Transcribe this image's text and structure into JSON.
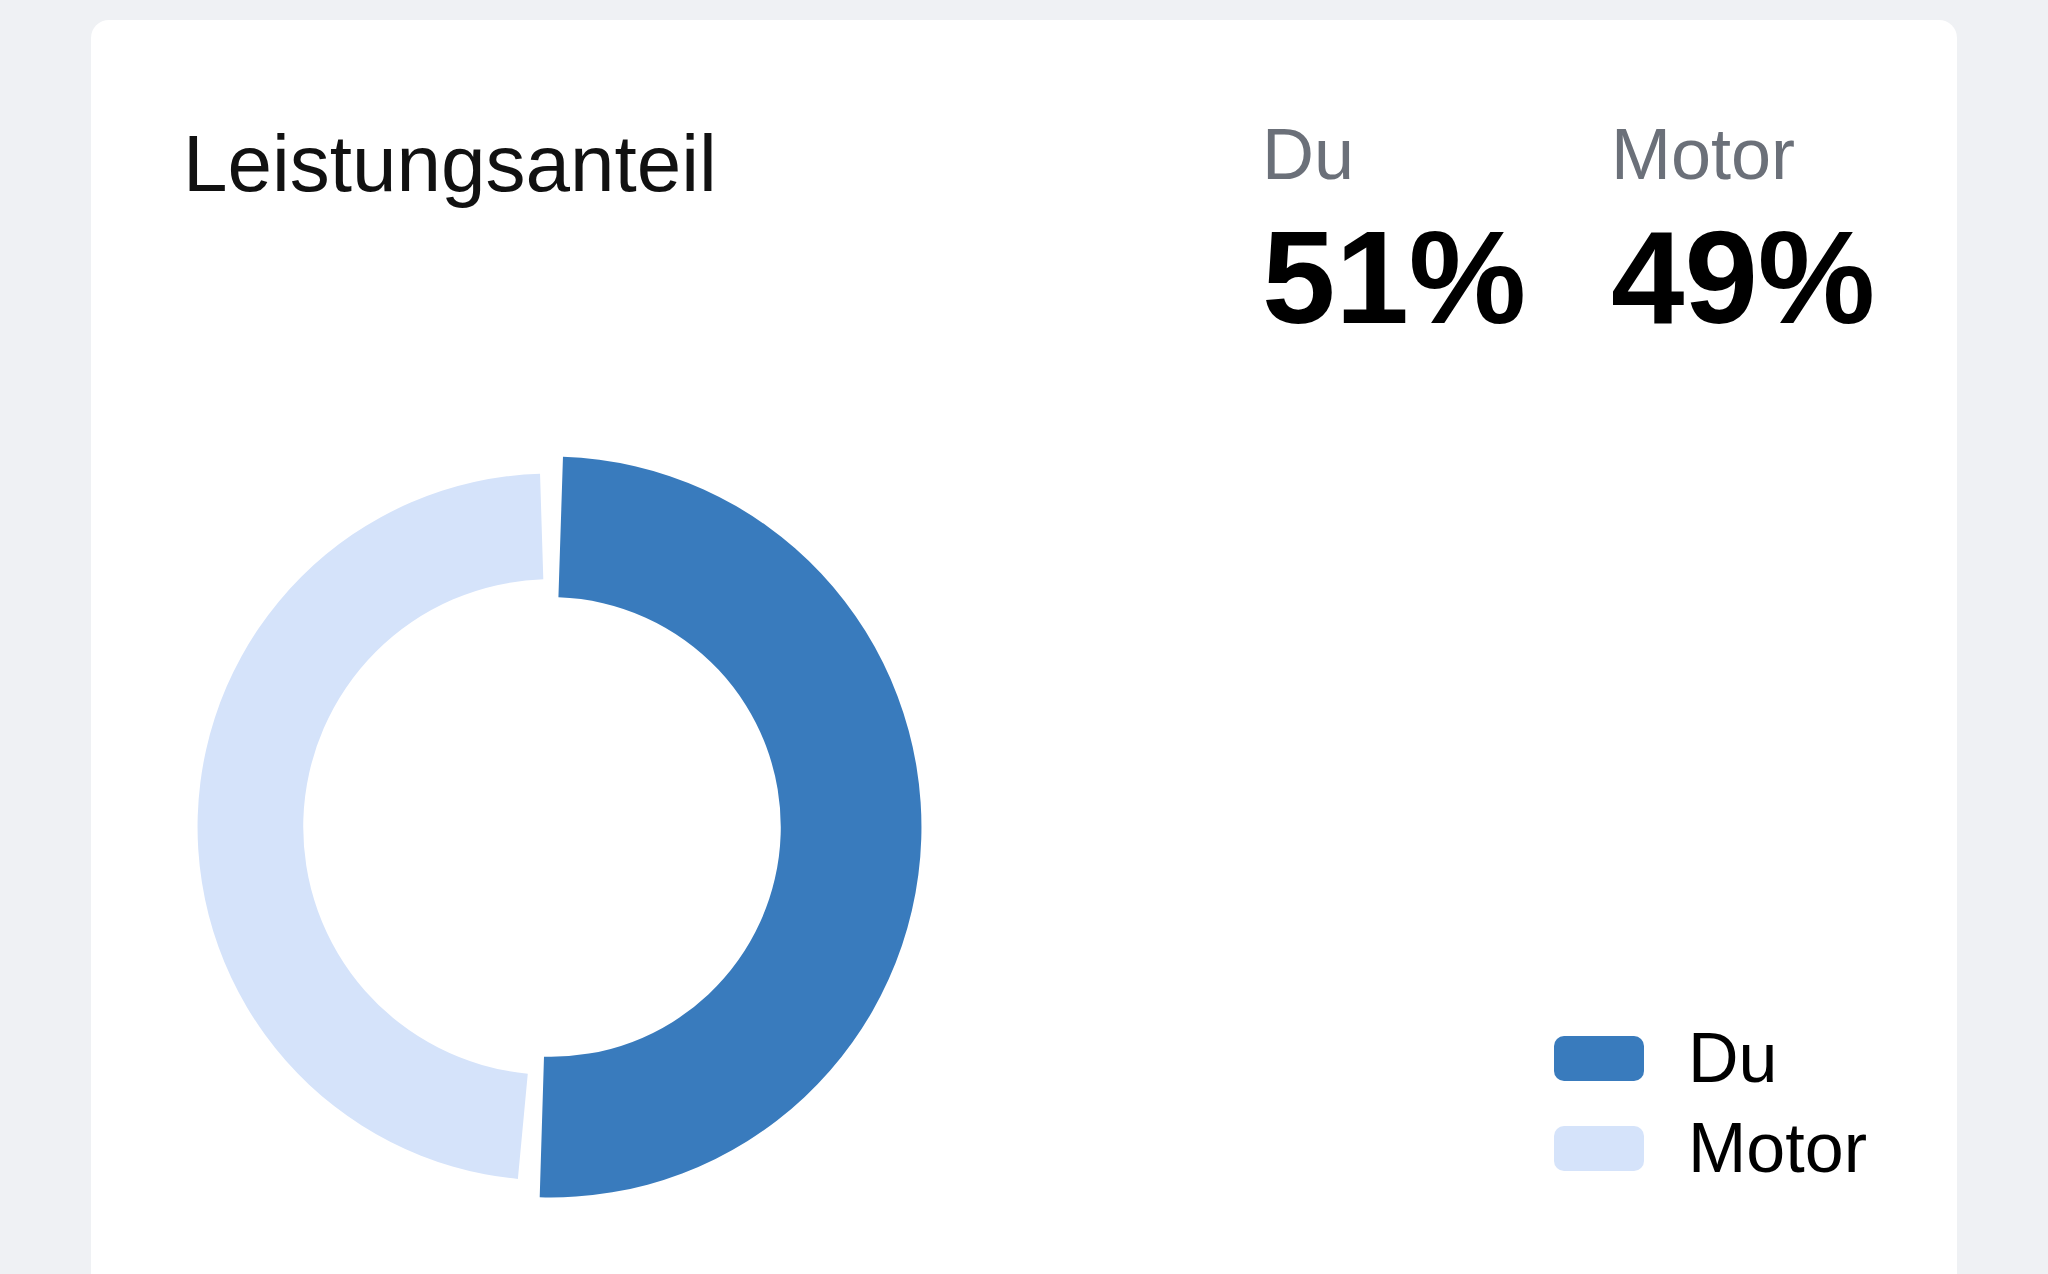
{
  "chart_data": {
    "type": "donut",
    "title": "Leistungsanteil",
    "categories": [
      "Du",
      "Motor"
    ],
    "values": [
      51,
      49
    ],
    "colors": [
      "#397bbd",
      "#d5e3fa"
    ],
    "annotations": [
      "Du",
      "51%",
      "Motor",
      "49%"
    ],
    "legend": "bottom right"
  }
}
